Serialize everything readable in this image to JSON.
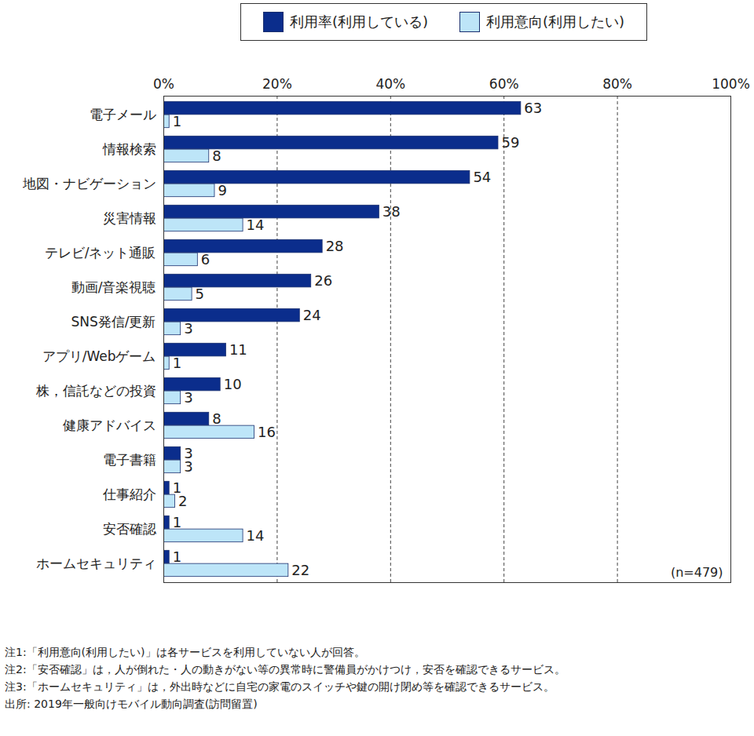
{
  "chart_data": {
    "type": "bar",
    "orientation": "horizontal",
    "categories": [
      "電子メール",
      "情報検索",
      "地図・ナビゲーション",
      "災害情報",
      "テレビ/ネット通販",
      "動画/音楽視聴",
      "SNS発信/更新",
      "アプリ/Webゲーム",
      "株，信託などの投資",
      "健康アドバイス",
      "電子書籍",
      "仕事紹介",
      "安否確認",
      "ホームセキュリティ"
    ],
    "series": [
      {
        "name": "利用率(利用している)",
        "color": "#0b2d8c",
        "values": [
          63,
          59,
          54,
          38,
          28,
          26,
          24,
          11,
          10,
          8,
          3,
          1,
          1,
          1
        ]
      },
      {
        "name": "利用意向(利用したい)",
        "color": "#bde5f8",
        "values": [
          1,
          8,
          9,
          14,
          6,
          5,
          3,
          1,
          3,
          16,
          3,
          2,
          14,
          22
        ]
      }
    ],
    "xlim": [
      0,
      100
    ],
    "xticks": [
      {
        "value": 0,
        "label": "0%"
      },
      {
        "value": 20,
        "label": "20%"
      },
      {
        "value": 40,
        "label": "40%"
      },
      {
        "value": 60,
        "label": "60%"
      },
      {
        "value": 80,
        "label": "80%"
      },
      {
        "value": 100,
        "label": "100%"
      }
    ],
    "grid": true,
    "legend": "top",
    "data_labels": true,
    "annotations": [
      "(n=479)"
    ],
    "notes": [
      "注1:「利用意向(利用したい)」は各サービスを利用していない人が回答。",
      "注2:「安否確認」は，人が倒れた・人の動きがない等の異常時に警備員がかけつけ，安否を確認できるサービス。",
      "注3:「ホームセキュリティ」は，外出時などに自宅の家電のスイッチや鍵の開け閉め等を確認できるサービス。",
      "出所: 2019年一般向けモバイル動向調査(訪問留置)"
    ]
  }
}
